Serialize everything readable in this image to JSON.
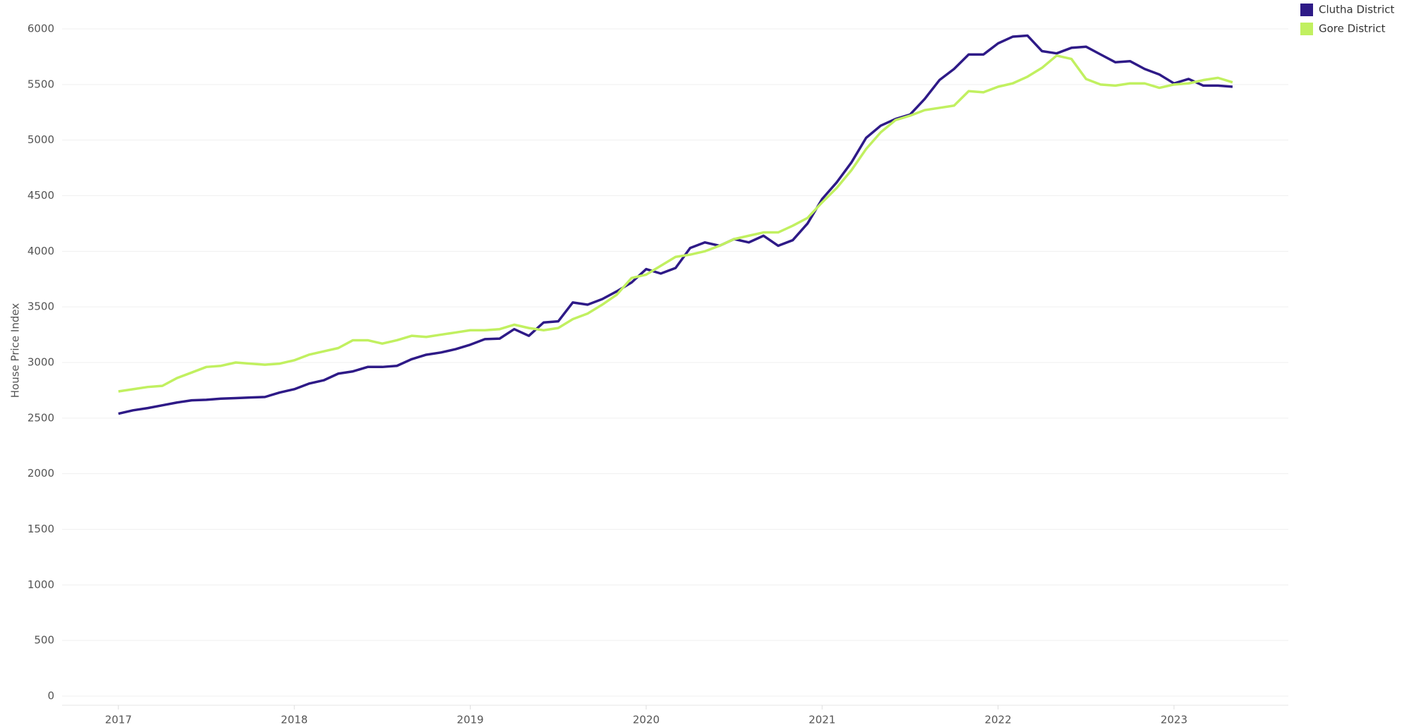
{
  "chart_data": {
    "type": "line",
    "y_label": "House Price Index",
    "x": [
      2017,
      2017.083,
      2017.167,
      2017.25,
      2017.333,
      2017.417,
      2017.5,
      2017.583,
      2017.667,
      2017.75,
      2017.833,
      2017.917,
      2018,
      2018.083,
      2018.167,
      2018.25,
      2018.333,
      2018.417,
      2018.5,
      2018.583,
      2018.667,
      2018.75,
      2018.833,
      2018.917,
      2019,
      2019.083,
      2019.167,
      2019.25,
      2019.333,
      2019.417,
      2019.5,
      2019.583,
      2019.667,
      2019.75,
      2019.833,
      2019.917,
      2020,
      2020.083,
      2020.167,
      2020.25,
      2020.333,
      2020.417,
      2020.5,
      2020.583,
      2020.667,
      2020.75,
      2020.833,
      2020.917,
      2021,
      2021.083,
      2021.167,
      2021.25,
      2021.333,
      2021.417,
      2021.5,
      2021.583,
      2021.667,
      2021.75,
      2021.833,
      2021.917,
      2022,
      2022.083,
      2022.167,
      2022.25,
      2022.333,
      2022.417,
      2022.5,
      2022.583,
      2022.667,
      2022.75,
      2022.833,
      2022.917,
      2023,
      2023.083,
      2023.167,
      2023.25,
      2023.333
    ],
    "series": [
      {
        "name": "Clutha District",
        "color": "#2e1a87",
        "values": [
          2540,
          2570,
          2590,
          2615,
          2640,
          2660,
          2665,
          2675,
          2680,
          2685,
          2690,
          2730,
          2760,
          2810,
          2840,
          2900,
          2920,
          2960,
          2960,
          2970,
          3030,
          3070,
          3090,
          3120,
          3160,
          3210,
          3215,
          3300,
          3240,
          3360,
          3370,
          3540,
          3520,
          3570,
          3640,
          3720,
          3840,
          3800,
          3850,
          4030,
          4080,
          4050,
          4110,
          4080,
          4140,
          4050,
          4100,
          4250,
          4470,
          4620,
          4800,
          5020,
          5130,
          5190,
          5230,
          5370,
          5540,
          5640,
          5770,
          5770,
          5870,
          5930,
          5940,
          5800,
          5780,
          5830,
          5840,
          5770,
          5700,
          5710,
          5640,
          5590,
          5510,
          5550,
          5490,
          5490,
          5480
        ]
      },
      {
        "name": "Gore District",
        "color": "#c1f060",
        "values": [
          2740,
          2760,
          2780,
          2790,
          2860,
          2910,
          2960,
          2970,
          3000,
          2990,
          2980,
          2990,
          3020,
          3070,
          3100,
          3130,
          3200,
          3200,
          3170,
          3200,
          3240,
          3230,
          3250,
          3270,
          3290,
          3290,
          3300,
          3340,
          3310,
          3290,
          3310,
          3390,
          3440,
          3520,
          3610,
          3760,
          3790,
          3870,
          3950,
          3970,
          4000,
          4050,
          4110,
          4140,
          4170,
          4170,
          4230,
          4300,
          4440,
          4570,
          4730,
          4920,
          5070,
          5180,
          5220,
          5270,
          5290,
          5310,
          5440,
          5430,
          5480,
          5510,
          5570,
          5650,
          5760,
          5730,
          5550,
          5500,
          5490,
          5510,
          5510,
          5470,
          5500,
          5510,
          5540,
          5560,
          5520
        ]
      }
    ],
    "xlim": [
      2016.68,
      2023.65
    ],
    "xticks": [
      2017,
      2018,
      2019,
      2020,
      2021,
      2022,
      2023
    ],
    "ylim": [
      0,
      6000
    ],
    "yticks": [
      0,
      500,
      1000,
      1500,
      2000,
      2500,
      3000,
      3500,
      4000,
      4500,
      5000,
      5500,
      6000
    ],
    "grid": true
  }
}
